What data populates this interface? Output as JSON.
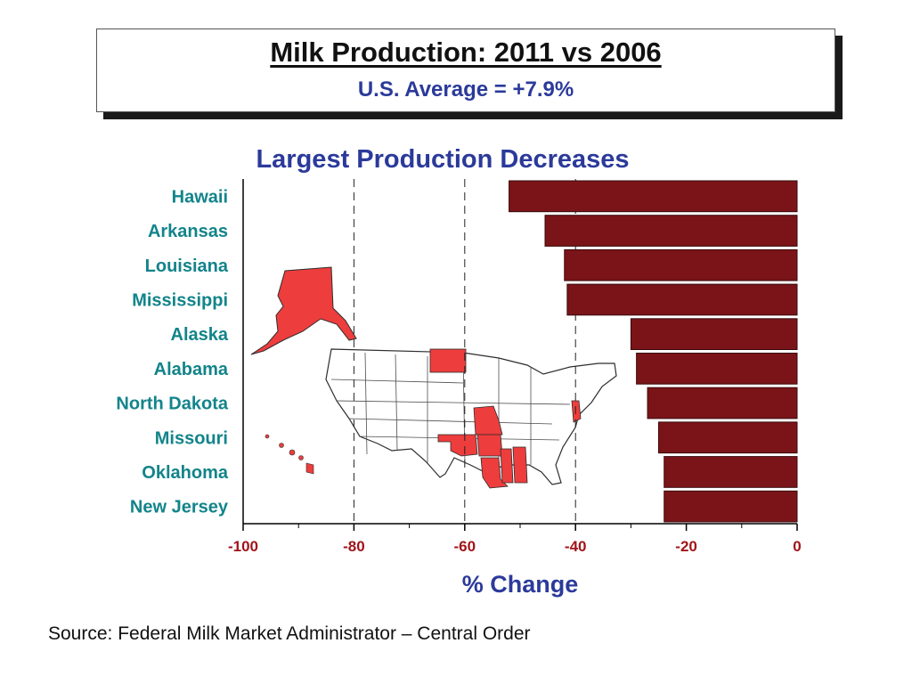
{
  "header": {
    "title": "Milk Production: 2011 vs 2006",
    "subtitle": "U.S. Average = +7.9%"
  },
  "footer": {
    "source": "Source: Federal Milk Market Administrator – Central Order"
  },
  "colors": {
    "bar": "#7a1418",
    "state_label": "#12848a",
    "tick_label": "#a0141a",
    "axis_title": "#2b3a9a",
    "map_highlight": "#ee3333"
  },
  "chart_data": {
    "type": "bar",
    "orientation": "horizontal",
    "title": "Largest Production Decreases",
    "xlabel": "% Change",
    "ylabel": "",
    "categories": [
      "Hawaii",
      "Arkansas",
      "Louisiana",
      "Mississippi",
      "Alaska",
      "Alabama",
      "North Dakota",
      "Missouri",
      "Oklahoma",
      "New Jersey"
    ],
    "values": [
      -52,
      -45.5,
      -42,
      -41.5,
      -30,
      -29,
      -27,
      -25,
      -24,
      -24
    ],
    "xlim": [
      -100,
      0
    ],
    "xticks": [
      "-100",
      "-80",
      "-60",
      "-40",
      "-20",
      "0"
    ],
    "gridlines": [
      -80,
      -60,
      -40
    ],
    "grid": "dashed vertical",
    "background_image": "US map with highlighted states"
  }
}
